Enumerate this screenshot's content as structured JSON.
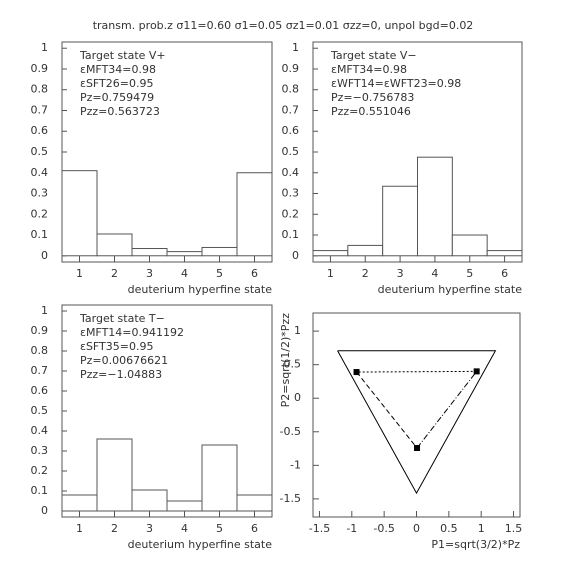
{
  "title": "transm. prob.z σ11=0.60 σ1=0.05 σz1=0.01 σzz=0, unpol bgd=0.02",
  "chart_data": [
    {
      "type": "bar",
      "xlabel": "deuterium hyperfine state",
      "annotations": [
        "Target state V+",
        "εMFT34=0.98",
        "εSFT26=0.95",
        "Pz=0.759479",
        "Pzz=0.563723"
      ],
      "categories": [
        "1",
        "2",
        "3",
        "4",
        "5",
        "6"
      ],
      "values": [
        0.41,
        0.105,
        0.035,
        0.02,
        0.04,
        0.4
      ],
      "color": "#ffffff",
      "ylim": [
        -0.03,
        1.03
      ],
      "yticks": [
        0,
        0.1,
        0.2,
        0.3,
        0.4,
        0.5,
        0.6,
        0.7,
        0.8,
        0.9,
        1
      ]
    },
    {
      "type": "bar",
      "xlabel": "deuterium hyperfine state",
      "annotations": [
        "Target state V−",
        "εMFT34=0.98",
        "εWFT14=εWFT23=0.98",
        "Pz=−0.756783",
        "Pzz=0.551046"
      ],
      "categories": [
        "1",
        "2",
        "3",
        "4",
        "5",
        "6"
      ],
      "values": [
        0.025,
        0.05,
        0.335,
        0.475,
        0.1,
        0.025
      ],
      "color": "#ffffff",
      "ylim": [
        -0.03,
        1.03
      ],
      "yticks": [
        0,
        0.1,
        0.2,
        0.3,
        0.4,
        0.5,
        0.6,
        0.7,
        0.8,
        0.9,
        1
      ]
    },
    {
      "type": "bar",
      "xlabel": "deuterium hyperfine state",
      "annotations": [
        "Target state T−",
        "εMFT14=0.941192",
        "εSFT35=0.95",
        "Pz=0.00676621",
        "Pzz=−1.04883"
      ],
      "categories": [
        "1",
        "2",
        "3",
        "4",
        "5",
        "6"
      ],
      "values": [
        0.08,
        0.36,
        0.105,
        0.05,
        0.33,
        0.08
      ],
      "color": "#ffffff",
      "ylim": [
        -0.03,
        1.03
      ],
      "yticks": [
        0,
        0.1,
        0.2,
        0.3,
        0.4,
        0.5,
        0.6,
        0.7,
        0.8,
        0.9,
        1
      ]
    },
    {
      "type": "scatter",
      "xlabel": "P1=sqrt(3/2)*Pz",
      "ylabel": "P2=sqrt(1/2)*Pzz",
      "x": [
        0.93,
        -0.927,
        0.008
      ],
      "values": [
        0.4,
        0.39,
        -0.742
      ],
      "color": "#000000",
      "boundary_x": [
        -1.22,
        1.22,
        0,
        -1.22
      ],
      "boundary_y": [
        0.707,
        0.707,
        -1.414,
        0.707
      ],
      "xlim": [
        -1.6,
        1.6
      ],
      "ylim": [
        -1.77,
        1.27
      ],
      "xticks": [
        -1.5,
        -1,
        -0.5,
        0,
        0.5,
        1,
        1.5
      ],
      "yticks": [
        -1.5,
        -1,
        -0.5,
        0,
        0.5,
        1
      ]
    }
  ]
}
